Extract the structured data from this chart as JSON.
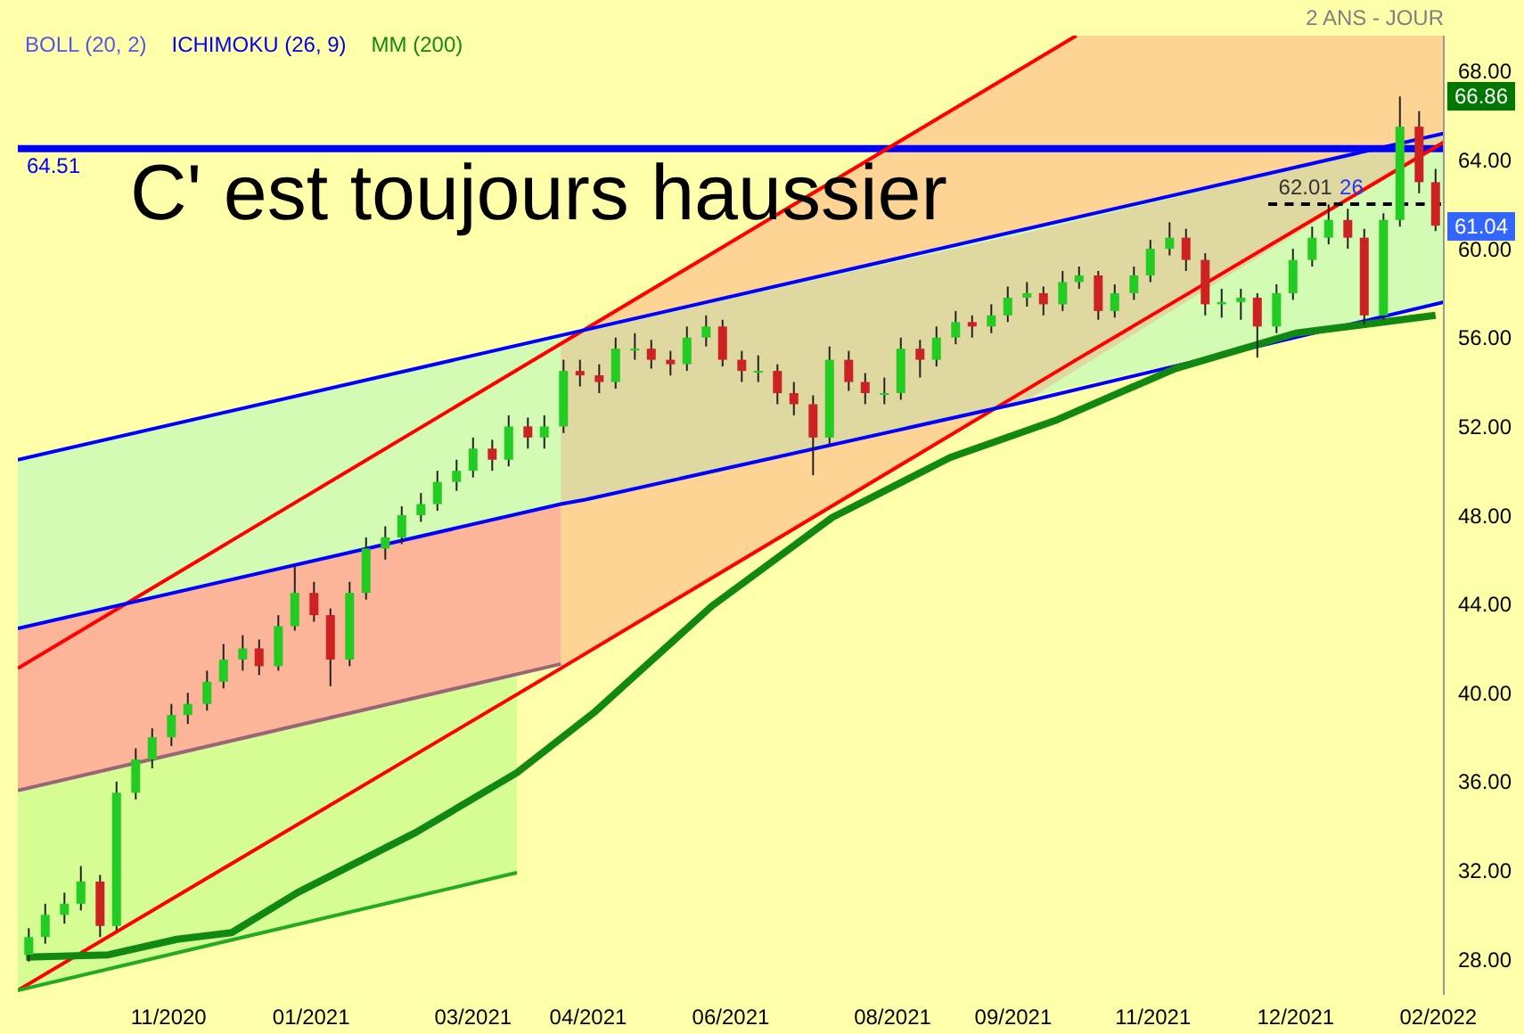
{
  "chart_data": {
    "type": "candlestick",
    "subtitle": "2 ANS - JOUR",
    "x": [
      "2020-09-20",
      "2020-09-26",
      "2020-10-03",
      "2020-10-09",
      "2020-10-16",
      "2020-10-22",
      "2020-10-29",
      "2020-11-04",
      "2020-11-11",
      "2020-11-17",
      "2020-11-24",
      "2020-11-30",
      "2020-12-07",
      "2020-12-13",
      "2020-12-20",
      "2020-12-26",
      "2021-01-02",
      "2021-01-08",
      "2021-01-15",
      "2021-01-21",
      "2021-01-28",
      "2021-02-03",
      "2021-02-10",
      "2021-02-16",
      "2021-02-23",
      "2021-03-01",
      "2021-03-08",
      "2021-03-14",
      "2021-03-21",
      "2021-03-27",
      "2021-04-03",
      "2021-04-09",
      "2021-04-16",
      "2021-04-22",
      "2021-04-29",
      "2021-05-05",
      "2021-05-12",
      "2021-05-18",
      "2021-05-25",
      "2021-05-31",
      "2021-06-07",
      "2021-06-13",
      "2021-06-20",
      "2021-06-26",
      "2021-07-03",
      "2021-07-09",
      "2021-07-16",
      "2021-07-22",
      "2021-07-29",
      "2021-08-04",
      "2021-08-11",
      "2021-08-17",
      "2021-08-24",
      "2021-08-30",
      "2021-09-06",
      "2021-09-12",
      "2021-09-19",
      "2021-09-25",
      "2021-10-02",
      "2021-10-08",
      "2021-10-15",
      "2021-10-21",
      "2021-10-28",
      "2021-11-03",
      "2021-11-10",
      "2021-11-16",
      "2021-11-23",
      "2021-11-29",
      "2021-12-06",
      "2021-12-12",
      "2021-12-19",
      "2021-12-25",
      "2022-01-01",
      "2022-01-07",
      "2022-01-14",
      "2022-01-20",
      "2022-01-27",
      "2022-02-02",
      "2022-02-09",
      "2022-02-15"
    ],
    "ohlc": [
      [
        28.2,
        29.4,
        27.9,
        29
      ],
      [
        29,
        30.5,
        28.7,
        30
      ],
      [
        30,
        31,
        29.6,
        30.5
      ],
      [
        30.5,
        32.2,
        30.2,
        31.5
      ],
      [
        31.5,
        31.8,
        29,
        29.5
      ],
      [
        29.5,
        36,
        29.3,
        35.5
      ],
      [
        35.5,
        37.5,
        35.2,
        37
      ],
      [
        37,
        38.4,
        36.6,
        38
      ],
      [
        38,
        39.5,
        37.6,
        39
      ],
      [
        39,
        40,
        38.6,
        39.5
      ],
      [
        39.5,
        41,
        39.2,
        40.5
      ],
      [
        40.5,
        42.2,
        40.2,
        41.5
      ],
      [
        41.5,
        42.6,
        41,
        42
      ],
      [
        42,
        42.4,
        40.8,
        41.2
      ],
      [
        41.2,
        43.5,
        41,
        43
      ],
      [
        43,
        45.7,
        42.8,
        44.5
      ],
      [
        44.5,
        45,
        43.2,
        43.5
      ],
      [
        43.5,
        43.8,
        40.3,
        41.5
      ],
      [
        41.5,
        45,
        41.2,
        44.5
      ],
      [
        44.5,
        47,
        44.2,
        46.5
      ],
      [
        46.5,
        47.5,
        46,
        47
      ],
      [
        47,
        48.4,
        46.7,
        48
      ],
      [
        48,
        49,
        47.7,
        48.5
      ],
      [
        48.5,
        50,
        48.2,
        49.5
      ],
      [
        49.5,
        50.5,
        49.1,
        50
      ],
      [
        50,
        51.5,
        49.7,
        51
      ],
      [
        51,
        51.4,
        50,
        50.5
      ],
      [
        50.5,
        52.5,
        50.2,
        52
      ],
      [
        52,
        52.4,
        51,
        51.5
      ],
      [
        51.5,
        52.5,
        51,
        52
      ],
      [
        52,
        55,
        51.7,
        54.5
      ],
      [
        54.5,
        55,
        53.8,
        54.3
      ],
      [
        54.3,
        54.8,
        53.5,
        54
      ],
      [
        54,
        56,
        53.7,
        55.5
      ],
      [
        55.5,
        56.2,
        55,
        55.5
      ],
      [
        55.5,
        55.9,
        54.6,
        55
      ],
      [
        55,
        55.4,
        54.3,
        54.8
      ],
      [
        54.8,
        56.5,
        54.5,
        56
      ],
      [
        56,
        57,
        55.6,
        56.5
      ],
      [
        56.5,
        56.8,
        54.7,
        55
      ],
      [
        55,
        55.4,
        54,
        54.5
      ],
      [
        54.5,
        55.2,
        54,
        54.5
      ],
      [
        54.5,
        54.8,
        53,
        53.5
      ],
      [
        53.5,
        54,
        52.5,
        53
      ],
      [
        53,
        53.4,
        49.8,
        51.5
      ],
      [
        51.5,
        55.6,
        51.2,
        55
      ],
      [
        55,
        55.4,
        53.6,
        54
      ],
      [
        54,
        54.4,
        53,
        53.5
      ],
      [
        53.5,
        54.2,
        53,
        53.5
      ],
      [
        53.5,
        56,
        53.2,
        55.5
      ],
      [
        55.5,
        55.9,
        54.2,
        55
      ],
      [
        55,
        56.5,
        54.7,
        56
      ],
      [
        56,
        57.2,
        55.7,
        56.7
      ],
      [
        56.7,
        57,
        56,
        56.5
      ],
      [
        56.5,
        57.5,
        56.2,
        57
      ],
      [
        57,
        58.3,
        56.7,
        57.8
      ],
      [
        57.8,
        58.5,
        57.4,
        58
      ],
      [
        58,
        58.3,
        57,
        57.5
      ],
      [
        57.5,
        59,
        57.2,
        58.5
      ],
      [
        58.5,
        59.2,
        58.2,
        58.8
      ],
      [
        58.8,
        59,
        56.8,
        57.2
      ],
      [
        57.2,
        58.4,
        56.9,
        58
      ],
      [
        58,
        59.2,
        57.7,
        58.8
      ],
      [
        58.8,
        60.4,
        58.5,
        60
      ],
      [
        60,
        61.2,
        59.7,
        60.5
      ],
      [
        60.5,
        60.9,
        59,
        59.5
      ],
      [
        59.5,
        59.8,
        57,
        57.5
      ],
      [
        57.5,
        58.2,
        56.9,
        57.6
      ],
      [
        57.6,
        58.2,
        56.8,
        57.8
      ],
      [
        57.8,
        58,
        55.1,
        56.5
      ],
      [
        56.5,
        58.4,
        56.2,
        58
      ],
      [
        58,
        60,
        57.7,
        59.5
      ],
      [
        59.5,
        61,
        59.2,
        60.5
      ],
      [
        60.5,
        62,
        60.2,
        61.3
      ],
      [
        61.3,
        61.8,
        60,
        60.5
      ],
      [
        60.5,
        60.9,
        56.6,
        57
      ],
      [
        57,
        61.6,
        56.8,
        61.3
      ],
      [
        61.3,
        66.86,
        61,
        65.5
      ],
      [
        65.5,
        66.2,
        62.5,
        63
      ],
      [
        63,
        63.6,
        60.8,
        61.04
      ]
    ],
    "series": [
      {
        "type": "line",
        "color": "#ff0000",
        "x": [
          "2020-09-16",
          "2021-10-07"
        ],
        "values": [
          41.1,
          69.6
        ]
      },
      {
        "type": "line",
        "color": "#ff0000",
        "x": [
          "2020-09-16",
          "2021-04-02",
          "2021-10-07",
          "2022-02-18"
        ],
        "values": [
          26.6,
          41.1,
          55,
          64.8
        ],
        "lower": [
          null,
          41.1,
          55,
          64.8
        ],
        "upper": [
          null,
          55.7,
          69.6,
          69.6
        ]
      },
      {
        "type": "line",
        "color": "#0000ff",
        "x": [
          "2020-09-16",
          "2022-02-18"
        ],
        "values": [
          50.5,
          65.2
        ],
        "lower": [
          42.9,
          57.6
        ],
        "upper": [
          50.5,
          65.2
        ]
      },
      {
        "type": "line",
        "color": "#0000ff",
        "x": [
          "2020-09-16",
          "2021-04-02",
          "2021-04-11",
          "2021-09-18",
          "2022-02-18"
        ],
        "values": [
          42.9,
          48.5,
          48.7,
          53.1,
          57.6
        ],
        "lower": [
          null,
          48.5,
          48.7,
          53.1,
          64.8
        ],
        "upper": [
          null,
          55.7,
          56.3,
          60.7,
          65.2
        ]
      },
      {
        "type": "line",
        "color": "#996677",
        "x": [
          "2020-09-16",
          "2021-04-02"
        ],
        "values": [
          35.6,
          41.3
        ],
        "lower": [
          35.6,
          41.3
        ],
        "upper": [
          42.9,
          48.5
        ]
      },
      {
        "type": "line",
        "color": "#22aa22",
        "x": [
          "2020-09-16",
          "2021-03-17"
        ],
        "values": [
          26.6,
          31.9
        ],
        "lower": [
          26.6,
          31.9
        ],
        "upper": [
          35.6,
          40.9
        ]
      },
      {
        "type": "line",
        "name": "MM (200)",
        "color": "#118811",
        "x": [
          "2020-09-19",
          "2020-10-19",
          "2020-11-13",
          "2020-12-03",
          "2020-12-27",
          "2021-02-08",
          "2021-03-17",
          "2021-04-14",
          "2021-05-27",
          "2021-07-10",
          "2021-08-22",
          "2021-09-30",
          "2021-11-12",
          "2021-12-26",
          "2022-02-15"
        ],
        "values": [
          28.1,
          28.2,
          28.9,
          29.2,
          31,
          33.7,
          36.4,
          39.1,
          43.9,
          47.9,
          50.6,
          52.3,
          54.6,
          56.2,
          57
        ]
      },
      {
        "type": "line",
        "color": "#000000",
        "line_style": "dashed",
        "x": [
          "2021-12-16",
          "2022-02-17"
        ],
        "values": [
          62.01,
          62.01
        ]
      }
    ],
    "ref_lines": [
      {
        "axis": "y",
        "value": 64.51,
        "label": "64.51",
        "color": "#0000ff"
      }
    ],
    "annotations": [
      "C' est toujours haussier",
      "BOLL (20, 2)",
      "ICHIMOKU (26, 9)",
      {
        "text": "62.01",
        "x": "2021-12-23",
        "y": 62.01
      },
      {
        "text": "26",
        "x": "2022-01-11",
        "y": 62.01
      },
      {
        "text": "66.86",
        "y": 66.86
      },
      {
        "text": "61.04",
        "y": 61.04
      }
    ],
    "xlim": [
      "2020-09-16",
      "2022-02-18"
    ],
    "xticks": [
      {
        "value": "2020-11-10",
        "label": "11/2020"
      },
      {
        "value": "2021-01-01",
        "label": "01/2021"
      },
      {
        "value": "2021-03-01",
        "label": "03/2021"
      },
      {
        "value": "2021-04-12",
        "label": "04/2021"
      },
      {
        "value": "2021-06-03",
        "label": "06/2021"
      },
      {
        "value": "2021-08-01",
        "label": "08/2021"
      },
      {
        "value": "2021-09-14",
        "label": "09/2021"
      },
      {
        "value": "2021-11-04",
        "label": "11/2021"
      },
      {
        "value": "2021-12-26",
        "label": "12/2021"
      },
      {
        "value": "2022-02-16",
        "label": "02/2022"
      }
    ],
    "ylim": [
      26.4,
      69.6
    ],
    "yticks": [
      {
        "value": 28,
        "label": "28.00"
      },
      {
        "value": 32,
        "label": "32.00"
      },
      {
        "value": 36,
        "label": "36.00"
      },
      {
        "value": 40,
        "label": "40.00"
      },
      {
        "value": 44,
        "label": "44.00"
      },
      {
        "value": 48,
        "label": "48.00"
      },
      {
        "value": 52,
        "label": "52.00"
      },
      {
        "value": 56,
        "label": "56.00"
      },
      {
        "value": 60,
        "label": "60.00"
      },
      {
        "value": 64,
        "label": "64.00"
      },
      {
        "value": 68,
        "label": "68.00"
      }
    ],
    "legend": "top left"
  }
}
